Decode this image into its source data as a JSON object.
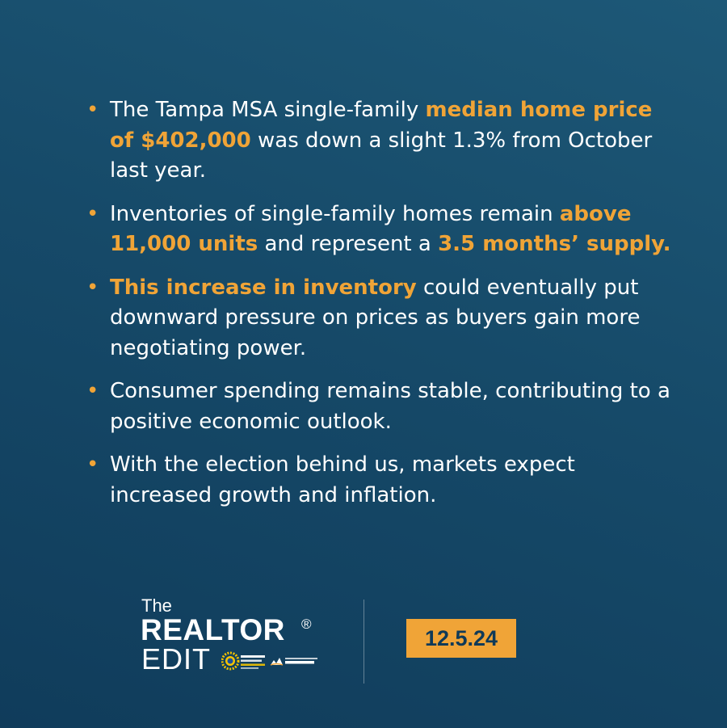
{
  "bullet_marker": "•",
  "bullets": [
    {
      "pre": "The Tampa MSA single-family ",
      "hl1": "median home price of $402,000",
      "mid": " was down a slight 1.3% from October last year.",
      "hl2": "",
      "post": ""
    },
    {
      "pre": "Inventories of single-family homes remain ",
      "hl1": "above 11,000 units",
      "mid": " and represent a ",
      "hl2": "3.5 months’ supply.",
      "post": ""
    },
    {
      "pre": "",
      "hl1": "This increase in inventory",
      "mid": " could eventually put downward pressure on prices as buyers gain more negotiating power.",
      "hl2": "",
      "post": ""
    },
    {
      "pre": "Consumer spending remains stable, contributing to a positive economic outlook.",
      "hl1": "",
      "mid": "",
      "hl2": "",
      "post": ""
    },
    {
      "pre": "With the election behind us, markets expect increased growth and inflation.",
      "hl1": "",
      "mid": "",
      "hl2": "",
      "post": ""
    }
  ],
  "logo": {
    "the": "The",
    "realtor": "REALTOR",
    "reg": "®",
    "edit": "EDIT"
  },
  "partner_logos": [
    "pinellas-realtor-organization-logo",
    "greater-tampa-realtors-logo"
  ],
  "date": "12.5.24",
  "colors": {
    "background_top": "#1d5877",
    "background_bottom": "#103c5b",
    "accent": "#f0a437",
    "text": "#ffffff",
    "badge_text": "#0f3a58"
  }
}
